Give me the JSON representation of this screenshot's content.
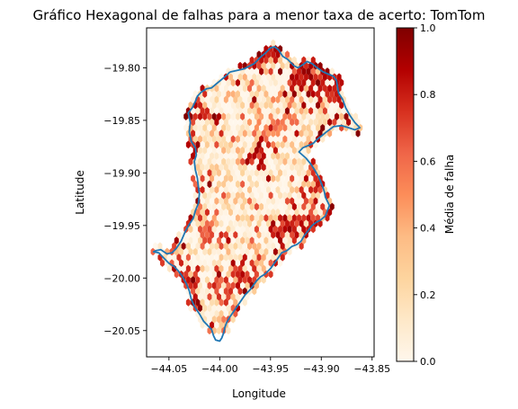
{
  "chart_data": {
    "type": "heatmap",
    "subtype": "hexbin",
    "title": "Gráfico Hexagonal de falhas para a menor taxa de acerto: TomTom",
    "xlabel": "Longitude",
    "ylabel": "Latitude",
    "xlim": [
      -44.072,
      -43.848
    ],
    "ylim": [
      -20.075,
      -19.762
    ],
    "x_ticks": [
      -44.05,
      -44.0,
      -43.95,
      -43.9,
      -43.85
    ],
    "x_tick_labels": [
      "−44.05",
      "−44.00",
      "−43.95",
      "−43.90",
      "−43.85"
    ],
    "y_ticks": [
      -19.8,
      -19.85,
      -19.9,
      -19.95,
      -20.0,
      -20.05
    ],
    "y_tick_labels": [
      "−19.80",
      "−19.85",
      "−19.90",
      "−19.95",
      "−20.00",
      "−20.05"
    ],
    "colorbar": {
      "label": "Média de falha",
      "colormap": "OrRd",
      "range": [
        0,
        1
      ],
      "ticks": [
        0.0,
        0.2,
        0.4,
        0.6,
        0.8,
        1.0
      ],
      "tick_labels": [
        "0.0",
        "0.2",
        "0.4",
        "0.6",
        "0.8",
        "1.0"
      ]
    },
    "boundary": {
      "color": "#1f77b4",
      "lon": [
        -43.99,
        -43.976,
        -43.966,
        -43.96,
        -43.955,
        -43.95,
        -43.946,
        -43.942,
        -43.938,
        -43.933,
        -43.93,
        -43.927,
        -43.923,
        -43.918,
        -43.914,
        -43.909,
        -43.904,
        -43.898,
        -43.893,
        -43.888,
        -43.885,
        -43.884,
        -43.883,
        -43.879,
        -43.876,
        -43.872,
        -43.867,
        -43.862,
        -43.867,
        -43.873,
        -43.88,
        -43.888,
        -43.895,
        -43.9,
        -43.904,
        -43.908,
        -43.913,
        -43.918,
        -43.922,
        -43.915,
        -43.91,
        -43.906,
        -43.902,
        -43.899,
        -43.897,
        -43.896,
        -43.892,
        -43.894,
        -43.896,
        -43.901,
        -43.905,
        -43.909,
        -43.913,
        -43.917,
        -43.92,
        -43.924,
        -43.929,
        -43.934,
        -43.939,
        -43.944,
        -43.95,
        -43.955,
        -43.96,
        -43.964,
        -43.967,
        -43.97,
        -43.975,
        -43.98,
        -43.985,
        -43.99,
        -43.993,
        -43.995,
        -43.996,
        -43.998,
        -44.0,
        -44.004,
        -44.006,
        -44.008,
        -44.012,
        -44.016,
        -44.02,
        -44.025,
        -44.028,
        -44.03,
        -44.033,
        -44.037,
        -44.041,
        -44.045,
        -44.05,
        -44.055,
        -44.06,
        -44.065,
        -44.063,
        -44.058,
        -44.052,
        -44.047,
        -44.043,
        -44.038,
        -44.034,
        -44.03,
        -44.026,
        -44.024,
        -44.021,
        -44.02,
        -44.021,
        -44.022,
        -44.024,
        -44.025,
        -44.023,
        -44.024,
        -44.028,
        -44.03,
        -44.029,
        -44.031,
        -44.027,
        -44.024,
        -44.022,
        -44.018,
        -44.013,
        -44.008,
        -44.003,
        -43.998,
        -43.993,
        -43.99
      ],
      "lat": [
        -19.804,
        -19.801,
        -19.796,
        -19.79,
        -19.786,
        -19.781,
        -19.78,
        -19.783,
        -19.789,
        -19.792,
        -19.795,
        -19.798,
        -19.8,
        -19.797,
        -19.794,
        -19.796,
        -19.8,
        -19.804,
        -19.806,
        -19.808,
        -19.812,
        -19.818,
        -19.824,
        -19.83,
        -19.838,
        -19.845,
        -19.852,
        -19.857,
        -19.859,
        -19.857,
        -19.855,
        -19.856,
        -19.861,
        -19.865,
        -19.868,
        -19.872,
        -19.874,
        -19.876,
        -19.88,
        -19.886,
        -19.892,
        -19.898,
        -19.905,
        -19.912,
        -19.918,
        -19.923,
        -19.931,
        -19.936,
        -19.941,
        -19.945,
        -19.947,
        -19.95,
        -19.955,
        -19.96,
        -19.965,
        -19.968,
        -19.97,
        -19.974,
        -19.976,
        -19.983,
        -19.991,
        -19.996,
        -19.999,
        -20.003,
        -20.007,
        -20.011,
        -20.016,
        -20.023,
        -20.03,
        -20.037,
        -20.042,
        -20.047,
        -20.052,
        -20.057,
        -20.06,
        -20.059,
        -20.055,
        -20.049,
        -20.045,
        -20.041,
        -20.034,
        -20.027,
        -20.02,
        -20.012,
        -20.005,
        -19.998,
        -19.993,
        -19.989,
        -19.986,
        -19.981,
        -19.976,
        -19.975,
        -19.974,
        -19.973,
        -19.977,
        -19.976,
        -19.972,
        -19.965,
        -19.956,
        -19.949,
        -19.943,
        -19.936,
        -19.929,
        -19.92,
        -19.913,
        -19.905,
        -19.897,
        -19.889,
        -19.883,
        -19.876,
        -19.87,
        -19.861,
        -19.852,
        -19.843,
        -19.838,
        -19.832,
        -19.827,
        -19.823,
        -19.82,
        -19.819,
        -19.815,
        -19.811,
        -19.807,
        -19.804
      ]
    },
    "hexbin": {
      "dx": 0.00464,
      "dy": 0.00536,
      "seed": 7,
      "clusters": [
        {
          "lon": -43.912,
          "lat": -19.812,
          "value": 0.97,
          "spread": 0.013
        },
        {
          "lon": -43.888,
          "lat": -19.822,
          "value": 0.95,
          "spread": 0.009
        },
        {
          "lon": -43.958,
          "lat": -19.79,
          "value": 0.93,
          "spread": 0.01
        },
        {
          "lon": -44.012,
          "lat": -19.845,
          "value": 0.9,
          "spread": 0.008
        },
        {
          "lon": -44.034,
          "lat": -19.872,
          "value": 0.88,
          "spread": 0.007
        },
        {
          "lon": -43.963,
          "lat": -19.88,
          "value": 0.92,
          "spread": 0.006
        },
        {
          "lon": -43.913,
          "lat": -19.95,
          "value": 0.88,
          "spread": 0.012
        },
        {
          "lon": -43.9,
          "lat": -19.912,
          "value": 0.85,
          "spread": 0.006
        },
        {
          "lon": -43.975,
          "lat": -19.995,
          "value": 0.9,
          "spread": 0.01
        },
        {
          "lon": -44.035,
          "lat": -20.005,
          "value": 0.85,
          "spread": 0.012
        },
        {
          "lon": -44.0,
          "lat": -20.012,
          "value": 0.8,
          "spread": 0.009
        },
        {
          "lon": -43.945,
          "lat": -19.955,
          "value": 0.92,
          "spread": 0.006
        },
        {
          "lon": -44.01,
          "lat": -19.955,
          "value": 0.75,
          "spread": 0.008
        },
        {
          "lon": -43.945,
          "lat": -19.85,
          "value": 0.62,
          "spread": 0.012
        }
      ]
    }
  }
}
